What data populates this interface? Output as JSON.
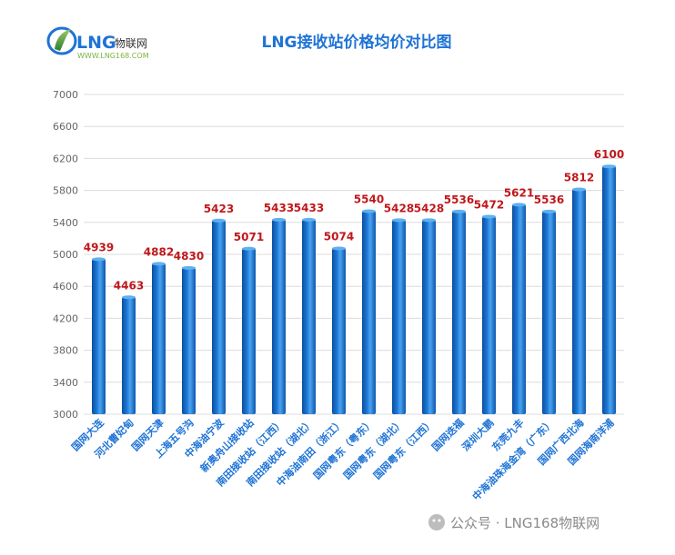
{
  "logo": {
    "brand": "LNG",
    "brand_cn": "物联网",
    "url": "WWW.LNG168.COM"
  },
  "watermark": {
    "text": "公众号 · LNG168物联网"
  },
  "colors": {
    "bar_top": "#4aa3ef",
    "bar_mid": "#1c76d2",
    "bar_bottom": "#0d4fa0",
    "title": "#1e73d6",
    "value_label": "#c0181c",
    "category": "#1e73d6",
    "grid": "#dcdcdc",
    "logo_green": "#7cb342"
  },
  "chart_data": {
    "type": "bar",
    "title": "LNG接收站价格均价对比图",
    "xlabel": "",
    "ylabel": "",
    "ylim": [
      3000,
      7000
    ],
    "yticks": [
      3000,
      3400,
      3800,
      4200,
      4600,
      5000,
      5400,
      5800,
      6200,
      6600,
      7000
    ],
    "grid": true,
    "categories": [
      "国网大连",
      "河北曹妃甸",
      "国网天津",
      "上海五号沟",
      "中海油宁波",
      "新奥舟山接收站",
      "南田接收站（江西）",
      "南田接收站（湖北）",
      "中海油南田（浙江）",
      "国网粤东（粤东）",
      "国网粤东（湖北）",
      "国网粤东（江西）",
      "国网迭福",
      "深圳大鹏",
      "东莞九丰",
      "中海油珠海金湾（广东）",
      "国网广西北海",
      "国网海南洋浦"
    ],
    "values": [
      4939,
      4463,
      4882,
      4830,
      5423,
      5071,
      5433,
      5433,
      5074,
      5540,
      5428,
      5428,
      5536,
      5472,
      5621,
      5536,
      5812,
      6100
    ],
    "data_labels": [
      "4939",
      "4463",
      "4882",
      "4830",
      "5423",
      "5071",
      "5433",
      "5433",
      "5074",
      "5540",
      "5428",
      "5428",
      "5536",
      "5472",
      "5621",
      "5536",
      "5812",
      "6100"
    ]
  }
}
